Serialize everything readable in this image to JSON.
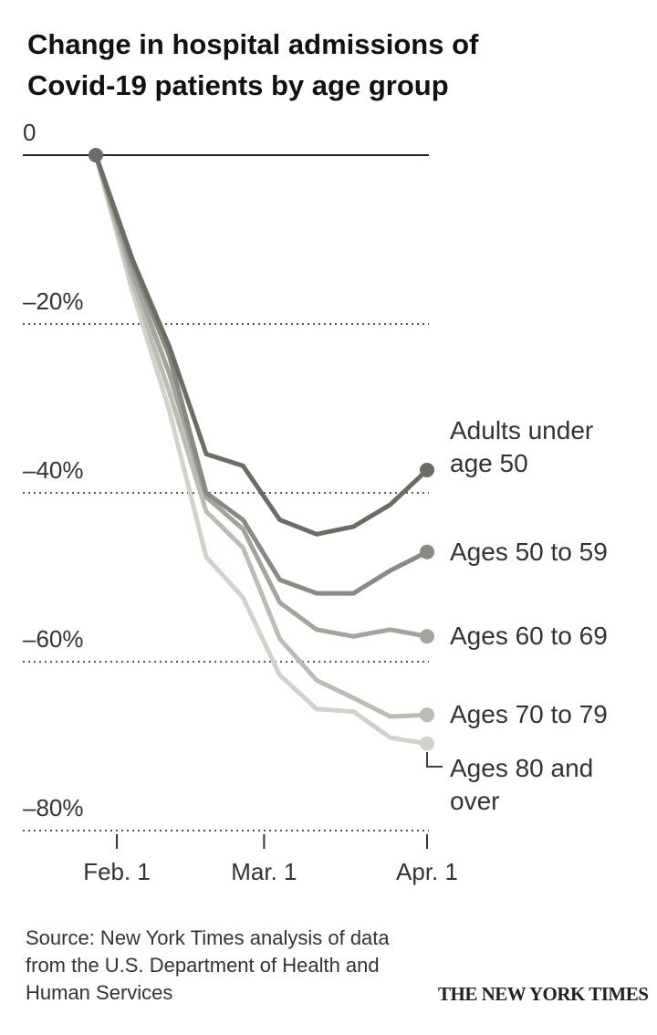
{
  "chart_data": {
    "type": "line",
    "title": "Change in hospital admissions of Covid-19 patients by age group",
    "source": "Source: New York Times analysis of data from the U.S. Department of Health and Human Services",
    "publisher": "THE NEW YORK TIMES",
    "x": [
      "01-28",
      "02-04",
      "02-11",
      "02-18",
      "02-25",
      "03-04",
      "03-11",
      "03-18",
      "03-25",
      "04-01"
    ],
    "xlim": [
      "01-28",
      "04-01"
    ],
    "xticks": [
      {
        "value": "02-01",
        "label": "Feb. 1"
      },
      {
        "value": "03-01",
        "label": "Mar. 1"
      },
      {
        "value": "04-01",
        "label": "Apr. 1"
      }
    ],
    "ylim": [
      -80,
      0
    ],
    "yticks": [
      0,
      {
        "value": -20,
        "label": "–20%"
      },
      {
        "value": -40,
        "label": "–40%"
      },
      {
        "value": -60,
        "label": "–60%"
      },
      {
        "value": -80,
        "label": "–80%"
      }
    ],
    "grid": true,
    "series": [
      {
        "name": "Adults under age 50",
        "color": "#6c6c65",
        "values": [
          0,
          -12.4,
          -22.7,
          -35.4,
          -36.8,
          -43.2,
          -44.9,
          -44.0,
          -41.4,
          -37.3
        ]
      },
      {
        "name": "Ages 50 to 59",
        "color": "#8a8a83",
        "values": [
          0,
          -13.0,
          -23.8,
          -40.0,
          -43.2,
          -50.3,
          -51.9,
          -51.9,
          -49.2,
          -47.0
        ]
      },
      {
        "name": "Ages 60 to 69",
        "color": "#a4a49d",
        "values": [
          0,
          -14.1,
          -25.9,
          -40.5,
          -44.3,
          -53.0,
          -56.2,
          -57.0,
          -56.2,
          -57.0
        ]
      },
      {
        "name": "Ages 70 to 79",
        "color": "#bcbcb5",
        "values": [
          0,
          -15.1,
          -28.1,
          -42.2,
          -46.5,
          -57.3,
          -62.2,
          -64.3,
          -66.5,
          -66.3
        ]
      },
      {
        "name": "Ages 80 and over",
        "color": "#d2d2cb",
        "values": [
          0,
          -16.2,
          -30.3,
          -47.6,
          -52.4,
          -61.6,
          -65.6,
          -65.9,
          -69.0,
          -69.7
        ]
      }
    ]
  }
}
